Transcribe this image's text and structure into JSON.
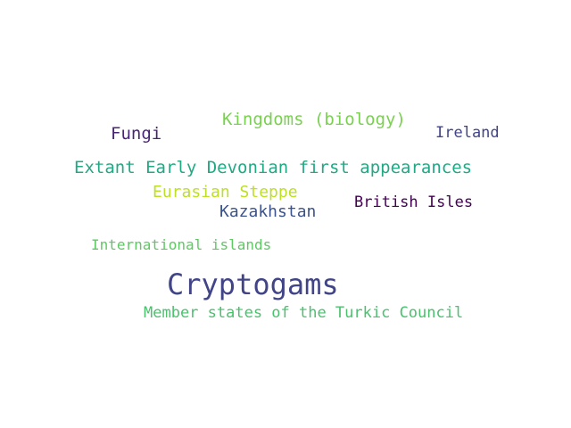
{
  "words": [
    {
      "text": "Kingdoms (biology)",
      "color": "#7ad151"
    },
    {
      "text": "Fungi",
      "color": "#482475"
    },
    {
      "text": "Ireland",
      "color": "#414487"
    },
    {
      "text": "Extant Early Devonian first appearances",
      "color": "#22a884"
    },
    {
      "text": "Eurasian Steppe",
      "color": "#bddf26"
    },
    {
      "text": "British Isles",
      "color": "#440154"
    },
    {
      "text": "Kazakhstan",
      "color": "#3b528b"
    },
    {
      "text": "International islands",
      "color": "#5ec962"
    },
    {
      "text": "Cryptogams",
      "color": "#414487"
    },
    {
      "text": "Member states of the Turkic Council",
      "color": "#4ac16d"
    }
  ]
}
